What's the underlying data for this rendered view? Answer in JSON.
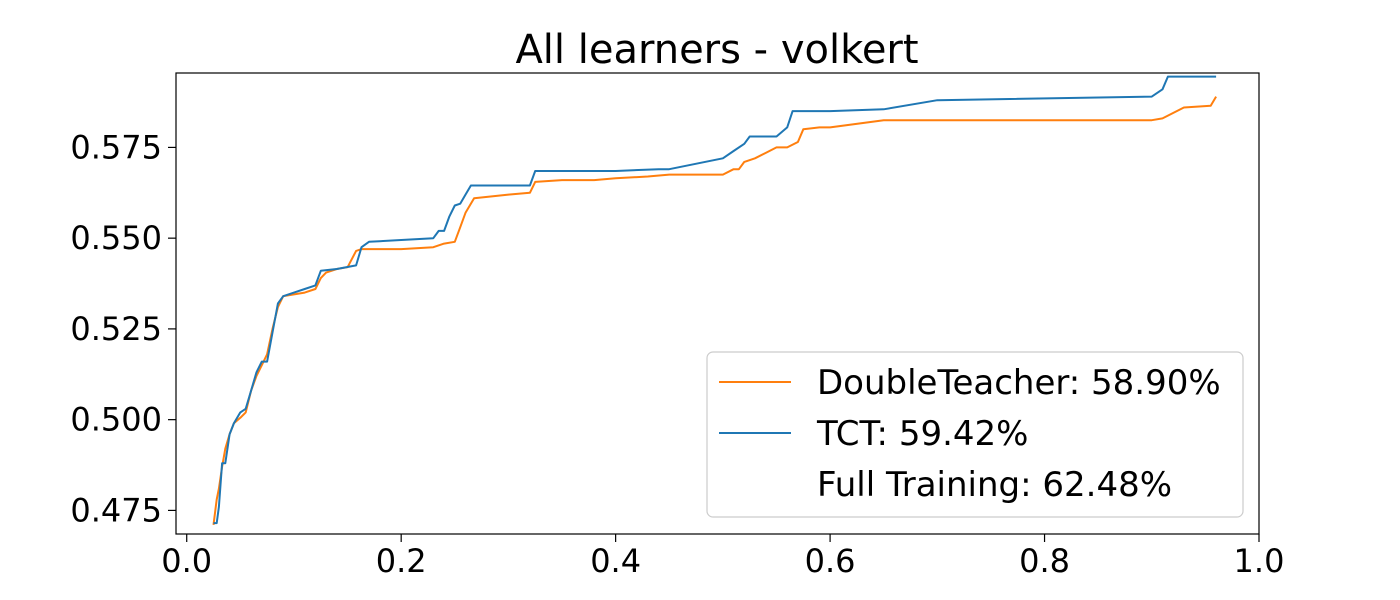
{
  "chart_data": {
    "type": "line",
    "title": "All learners - volkert",
    "xlabel": "",
    "ylabel": "",
    "xlim": [
      -0.01,
      1.0
    ],
    "ylim": [
      0.4685,
      0.5955
    ],
    "xticks": [
      0.0,
      0.2,
      0.4,
      0.6,
      0.8,
      1.0
    ],
    "xtick_labels": [
      "0.0",
      "0.2",
      "0.4",
      "0.6",
      "0.8",
      "1.0"
    ],
    "yticks": [
      0.475,
      0.5,
      0.525,
      0.55,
      0.575
    ],
    "ytick_labels": [
      "0.475",
      "0.500",
      "0.525",
      "0.550",
      "0.575"
    ],
    "grid": false,
    "legend_position": "lower-right",
    "series": [
      {
        "name": "DoubleTeacher: 58.90%",
        "color": "#ff7f0e",
        "x": [
          0.025,
          0.028,
          0.03,
          0.033,
          0.036,
          0.04,
          0.044,
          0.05,
          0.055,
          0.06,
          0.065,
          0.07,
          0.075,
          0.08,
          0.085,
          0.09,
          0.1,
          0.11,
          0.12,
          0.125,
          0.13,
          0.14,
          0.15,
          0.158,
          0.163,
          0.17,
          0.2,
          0.23,
          0.24,
          0.25,
          0.255,
          0.26,
          0.268,
          0.3,
          0.32,
          0.325,
          0.35,
          0.38,
          0.4,
          0.43,
          0.45,
          0.5,
          0.51,
          0.515,
          0.52,
          0.53,
          0.54,
          0.55,
          0.56,
          0.57,
          0.575,
          0.59,
          0.6,
          0.65,
          0.7,
          0.9,
          0.91,
          0.93,
          0.955,
          0.96
        ],
        "y": [
          0.471,
          0.478,
          0.481,
          0.487,
          0.492,
          0.496,
          0.499,
          0.5005,
          0.502,
          0.508,
          0.512,
          0.515,
          0.518,
          0.525,
          0.531,
          0.534,
          0.5345,
          0.535,
          0.536,
          0.539,
          0.5405,
          0.5415,
          0.542,
          0.5465,
          0.547,
          0.547,
          0.547,
          0.5475,
          0.5485,
          0.549,
          0.553,
          0.557,
          0.561,
          0.562,
          0.5625,
          0.5655,
          0.566,
          0.566,
          0.5665,
          0.567,
          0.5675,
          0.5675,
          0.569,
          0.569,
          0.571,
          0.572,
          0.5735,
          0.575,
          0.575,
          0.5765,
          0.58,
          0.5805,
          0.5805,
          0.5825,
          0.5825,
          0.5825,
          0.583,
          0.586,
          0.5865,
          0.589
        ]
      },
      {
        "name": "TCT: 59.42%",
        "color": "#1f77b4",
        "x": [
          0.025,
          0.028,
          0.03,
          0.033,
          0.036,
          0.04,
          0.044,
          0.05,
          0.055,
          0.06,
          0.065,
          0.07,
          0.075,
          0.08,
          0.085,
          0.09,
          0.1,
          0.11,
          0.12,
          0.125,
          0.14,
          0.158,
          0.163,
          0.17,
          0.2,
          0.23,
          0.235,
          0.24,
          0.245,
          0.25,
          0.255,
          0.26,
          0.265,
          0.3,
          0.32,
          0.325,
          0.35,
          0.4,
          0.44,
          0.45,
          0.5,
          0.51,
          0.52,
          0.525,
          0.55,
          0.56,
          0.565,
          0.6,
          0.65,
          0.7,
          0.9,
          0.91,
          0.915,
          0.96
        ],
        "y": [
          0.4715,
          0.4715,
          0.476,
          0.488,
          0.488,
          0.496,
          0.499,
          0.502,
          0.503,
          0.508,
          0.513,
          0.516,
          0.516,
          0.524,
          0.532,
          0.534,
          0.535,
          0.536,
          0.537,
          0.541,
          0.5415,
          0.5425,
          0.5475,
          0.549,
          0.5495,
          0.55,
          0.552,
          0.552,
          0.556,
          0.559,
          0.5595,
          0.562,
          0.5645,
          0.5645,
          0.5645,
          0.5685,
          0.5685,
          0.5685,
          0.569,
          0.569,
          0.572,
          0.574,
          0.576,
          0.578,
          0.578,
          0.5805,
          0.585,
          0.585,
          0.5855,
          0.588,
          0.589,
          0.591,
          0.5945,
          0.5945
        ]
      },
      {
        "name": "Full Training: 62.48%",
        "color": "#ffffff",
        "x": [],
        "y": []
      }
    ]
  }
}
